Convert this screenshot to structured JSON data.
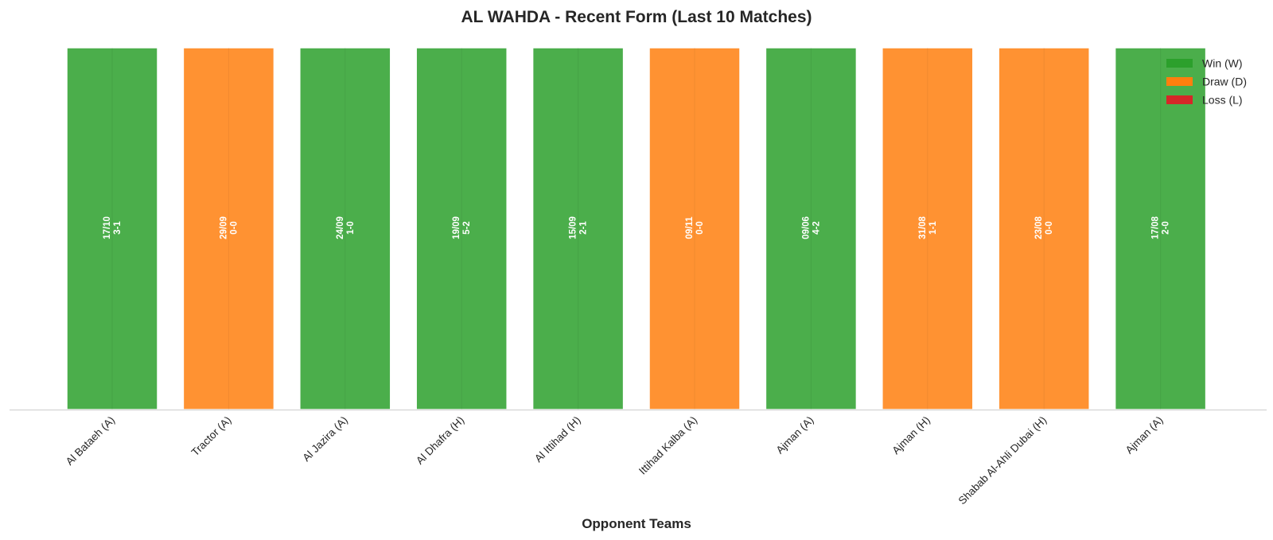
{
  "chart_data": {
    "type": "bar",
    "title": "AL WAHDA - Recent Form (Last 10 Matches)",
    "xlabel": "Opponent Teams",
    "ylabel": "",
    "legend": {
      "placement": "top-right",
      "entries": [
        {
          "key": "W",
          "label": "Win (W)",
          "color": "#2ca02c"
        },
        {
          "key": "D",
          "label": "Draw (D)",
          "color": "#ff7f0e"
        },
        {
          "key": "L",
          "label": "Loss (L)",
          "color": "#d62728"
        }
      ]
    },
    "grid": false,
    "categories": [
      "Al Bataeh (A)",
      "Tractor (A)",
      "Al Jazira (A)",
      "Al Dhafra (H)",
      "Al Ittihad (H)",
      "Ittihad Kalba (A)",
      "Ajman (A)",
      "Ajman (H)",
      "Shabab Al-Ahli Dubai (H)",
      "Ajman (A)"
    ],
    "values": [
      1,
      1,
      1,
      1,
      1,
      1,
      1,
      1,
      1,
      1
    ],
    "results": [
      "W",
      "D",
      "W",
      "W",
      "W",
      "D",
      "W",
      "D",
      "D",
      "W"
    ],
    "dates": [
      "17/10",
      "29/09",
      "24/09",
      "19/09",
      "15/09",
      "09/11",
      "09/06",
      "31/08",
      "23/08",
      "17/08"
    ],
    "scores": [
      "3-1",
      "0-0",
      "1-0",
      "5-2",
      "2-1",
      "0-0",
      "4-2",
      "1-1",
      "0-0",
      "2-0"
    ],
    "ylim": [
      0,
      1
    ]
  }
}
